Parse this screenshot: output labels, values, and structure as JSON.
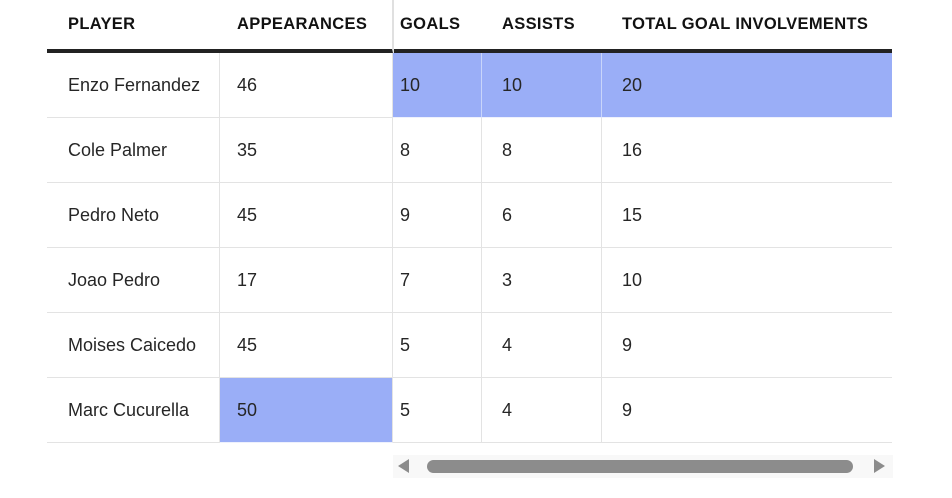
{
  "table": {
    "columns": [
      {
        "key": "player",
        "label": "PLAYER"
      },
      {
        "key": "appearances",
        "label": "APPEARANCES"
      },
      {
        "key": "goals",
        "label": "GOALS"
      },
      {
        "key": "assists",
        "label": "ASSISTS"
      },
      {
        "key": "total",
        "label": "TOTAL GOAL INVOLVEMENTS"
      }
    ],
    "rows": [
      {
        "player": "Enzo Fernandez",
        "appearances": "46",
        "goals": "10",
        "assists": "10",
        "total": "20",
        "highlight": [
          "goals",
          "assists",
          "total"
        ]
      },
      {
        "player": "Cole Palmer",
        "appearances": "35",
        "goals": "8",
        "assists": "8",
        "total": "16",
        "highlight": []
      },
      {
        "player": "Pedro Neto",
        "appearances": "45",
        "goals": "9",
        "assists": "6",
        "total": "15",
        "highlight": []
      },
      {
        "player": "Joao Pedro",
        "appearances": "17",
        "goals": "7",
        "assists": "3",
        "total": "10",
        "highlight": []
      },
      {
        "player": "Moises Caicedo",
        "appearances": "45",
        "goals": "5",
        "assists": "4",
        "total": "9",
        "highlight": []
      },
      {
        "player": "Marc Cucurella",
        "appearances": "50",
        "goals": "5",
        "assists": "4",
        "total": "9",
        "highlight": [
          "appearances"
        ]
      }
    ]
  },
  "chart_data": {
    "type": "table",
    "title": "",
    "columns": [
      "PLAYER",
      "APPEARANCES",
      "GOALS",
      "ASSISTS",
      "TOTAL GOAL INVOLVEMENTS"
    ],
    "rows": [
      [
        "Enzo Fernandez",
        46,
        10,
        10,
        20
      ],
      [
        "Cole Palmer",
        35,
        8,
        8,
        16
      ],
      [
        "Pedro Neto",
        45,
        9,
        6,
        15
      ],
      [
        "Joao Pedro",
        17,
        7,
        3,
        10
      ],
      [
        "Moises Caicedo",
        45,
        5,
        4,
        9
      ],
      [
        "Marc Cucurella",
        50,
        5,
        4,
        9
      ]
    ],
    "highlighted_cells": [
      {
        "row": "Enzo Fernandez",
        "columns": [
          "GOALS",
          "ASSISTS",
          "TOTAL GOAL INVOLVEMENTS"
        ]
      },
      {
        "row": "Marc Cucurella",
        "columns": [
          "APPEARANCES"
        ]
      }
    ]
  },
  "scrollbar": {
    "orientation": "horizontal",
    "left_arrow_icon": "triangle-left-icon",
    "right_arrow_icon": "triangle-right-icon"
  },
  "colors": {
    "highlight_blue": "#9aaef7",
    "header_rule": "#222222",
    "row_border": "#e3e3e3",
    "header_text": "#121212",
    "cell_text": "#262626",
    "scrollbar_thumb": "#8c8c8c",
    "scrollbar_track": "#f8f8f8"
  }
}
